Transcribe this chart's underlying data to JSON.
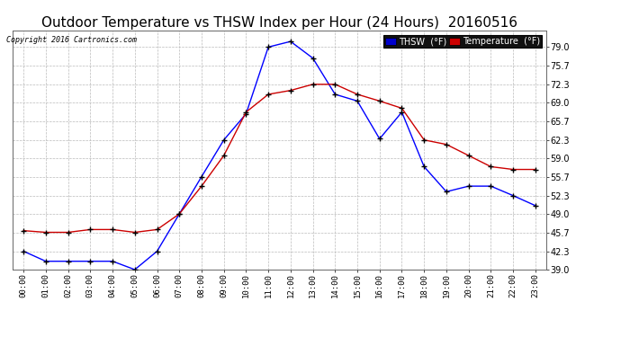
{
  "title": "Outdoor Temperature vs THSW Index per Hour (24 Hours)  20160516",
  "copyright": "Copyright 2016 Cartronics.com",
  "hours": [
    "00:00",
    "01:00",
    "02:00",
    "03:00",
    "04:00",
    "05:00",
    "06:00",
    "07:00",
    "08:00",
    "09:00",
    "10:00",
    "11:00",
    "12:00",
    "13:00",
    "14:00",
    "15:00",
    "16:00",
    "17:00",
    "18:00",
    "19:00",
    "20:00",
    "21:00",
    "22:00",
    "23:00"
  ],
  "thsw": [
    42.3,
    40.5,
    40.5,
    40.5,
    40.5,
    39.0,
    42.3,
    49.0,
    55.7,
    62.3,
    67.0,
    79.0,
    80.0,
    77.0,
    70.5,
    69.3,
    62.5,
    67.3,
    57.5,
    53.0,
    54.0,
    54.0,
    52.3,
    50.5
  ],
  "temp": [
    46.0,
    45.7,
    45.7,
    46.2,
    46.2,
    45.7,
    46.2,
    49.0,
    54.0,
    59.5,
    67.3,
    70.5,
    71.2,
    72.3,
    72.3,
    70.5,
    69.3,
    68.0,
    62.3,
    61.5,
    59.5,
    57.5,
    57.0,
    57.0
  ],
  "ylim": [
    39.0,
    82.0
  ],
  "yticks": [
    39.0,
    42.3,
    45.7,
    49.0,
    52.3,
    55.7,
    59.0,
    62.3,
    65.7,
    69.0,
    72.3,
    75.7,
    79.0
  ],
  "thsw_color": "#0000ff",
  "temp_color": "#cc0000",
  "bg_color": "#ffffff",
  "grid_color": "#bbbbbb",
  "title_fontsize": 11,
  "legend_thsw_bg": "#0000cc",
  "legend_temp_bg": "#cc0000",
  "marker_color": "#000000",
  "marker_size": 4,
  "linewidth": 1.0
}
